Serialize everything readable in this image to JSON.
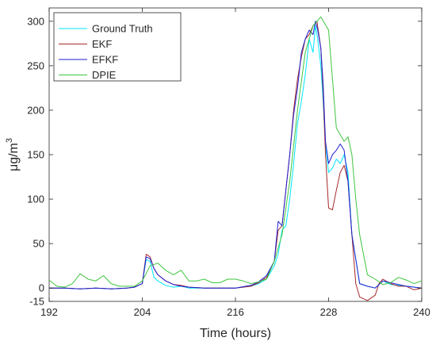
{
  "chart_data": {
    "type": "line",
    "xlabel": "Time (hours)",
    "ylabel": "μg/m",
    "ylabel_superscript": "3",
    "xlim": [
      192,
      240
    ],
    "ylim": [
      -15,
      315
    ],
    "xticks": [
      "192",
      "204",
      "216",
      "228",
      "240"
    ],
    "yticks": [
      "-15",
      "0",
      "50",
      "100",
      "150",
      "200",
      "250",
      "300"
    ],
    "ytick_values": [
      -15,
      0,
      50,
      100,
      150,
      200,
      250,
      300
    ],
    "xtick_values": [
      192,
      204,
      216,
      228,
      240
    ],
    "grid": false,
    "legend_position": "top-left",
    "series": [
      {
        "name": "Ground Truth",
        "color": "#00e5ff",
        "x": [
          192,
          194,
          196,
          198,
          200,
          202,
          203,
          204,
          204.5,
          205,
          205.5,
          206,
          207,
          208,
          209,
          210,
          212,
          214,
          216,
          218,
          219,
          220,
          221,
          221.5,
          222,
          222.5,
          223,
          223.5,
          224,
          224.5,
          225,
          225.5,
          226,
          226.3,
          226.6,
          227,
          227.3,
          227.6,
          228,
          228.5,
          229,
          229.5,
          230,
          230.5,
          231,
          232,
          233,
          234,
          235,
          236,
          238,
          240
        ],
        "y": [
          0,
          0,
          -1,
          0,
          -1,
          0,
          1,
          5,
          32,
          30,
          12,
          8,
          3,
          1,
          2,
          0,
          0,
          0,
          0,
          2,
          5,
          10,
          25,
          38,
          65,
          70,
          100,
          140,
          185,
          210,
          240,
          280,
          265,
          295,
          280,
          250,
          210,
          160,
          130,
          135,
          145,
          140,
          150,
          130,
          60,
          5,
          2,
          0,
          8,
          4,
          2,
          0
        ]
      },
      {
        "name": "EKF",
        "color": "#a52a2a",
        "x": [
          192,
          194,
          196,
          198,
          200,
          202,
          203,
          204,
          204.5,
          205,
          205.5,
          206,
          207,
          208,
          209,
          210,
          212,
          214,
          216,
          218,
          219,
          220,
          221,
          221.5,
          222,
          222.5,
          223,
          223.5,
          224,
          224.5,
          225,
          225.5,
          226,
          226.5,
          227,
          227.3,
          227.6,
          228,
          228.5,
          229,
          229.5,
          230,
          230.5,
          231,
          231.5,
          232,
          233,
          234,
          234.5,
          235,
          236,
          237,
          238,
          239,
          240
        ],
        "y": [
          0,
          0,
          -1,
          0,
          -1,
          0,
          1,
          5,
          38,
          35,
          22,
          15,
          8,
          4,
          3,
          1,
          0,
          0,
          0,
          2,
          6,
          12,
          30,
          65,
          70,
          110,
          150,
          200,
          235,
          260,
          280,
          285,
          295,
          300,
          270,
          220,
          150,
          90,
          88,
          110,
          130,
          138,
          120,
          60,
          5,
          -10,
          -14,
          -8,
          5,
          10,
          5,
          2,
          2,
          -2,
          0
        ]
      },
      {
        "name": "EFKF",
        "color": "#1f1fd0",
        "x": [
          192,
          194,
          196,
          198,
          200,
          202,
          203,
          204,
          204.5,
          205,
          205.5,
          206,
          207,
          208,
          209,
          210,
          212,
          214,
          216,
          218,
          219,
          220,
          221,
          221.5,
          222,
          222.5,
          223,
          223.5,
          224,
          224.5,
          225,
          225.5,
          226,
          226.3,
          226.6,
          227,
          227.3,
          227.6,
          228,
          228.5,
          229,
          229.5,
          230,
          230.5,
          231,
          232,
          233,
          234,
          235,
          236,
          238,
          240
        ],
        "y": [
          0,
          0,
          -1,
          0,
          -1,
          0,
          1,
          5,
          35,
          33,
          22,
          15,
          8,
          4,
          2,
          1,
          0,
          0,
          0,
          3,
          7,
          14,
          30,
          75,
          70,
          110,
          150,
          195,
          225,
          265,
          280,
          290,
          285,
          300,
          290,
          270,
          230,
          165,
          140,
          150,
          155,
          162,
          155,
          120,
          60,
          5,
          2,
          0,
          8,
          6,
          2,
          0
        ]
      },
      {
        "name": "DPIE",
        "color": "#3fc53f",
        "x": [
          192,
          193,
          194,
          195,
          196,
          197,
          198,
          199,
          200,
          201,
          202,
          203,
          204,
          205,
          206,
          207,
          208,
          209,
          210,
          211,
          212,
          213,
          214,
          215,
          216,
          217,
          218,
          219,
          220,
          221,
          222,
          223,
          224,
          225,
          226,
          227,
          228,
          229,
          230,
          230.5,
          231,
          231.5,
          232,
          233,
          234,
          235,
          236,
          237,
          238,
          239,
          240
        ],
        "y": [
          9,
          2,
          1,
          5,
          16,
          10,
          8,
          14,
          5,
          2,
          2,
          2,
          8,
          25,
          28,
          20,
          15,
          20,
          8,
          8,
          10,
          6,
          6,
          10,
          10,
          8,
          5,
          7,
          10,
          30,
          60,
          120,
          200,
          265,
          295,
          305,
          290,
          180,
          165,
          170,
          150,
          100,
          60,
          15,
          10,
          4,
          6,
          12,
          9,
          5,
          8
        ]
      }
    ]
  }
}
